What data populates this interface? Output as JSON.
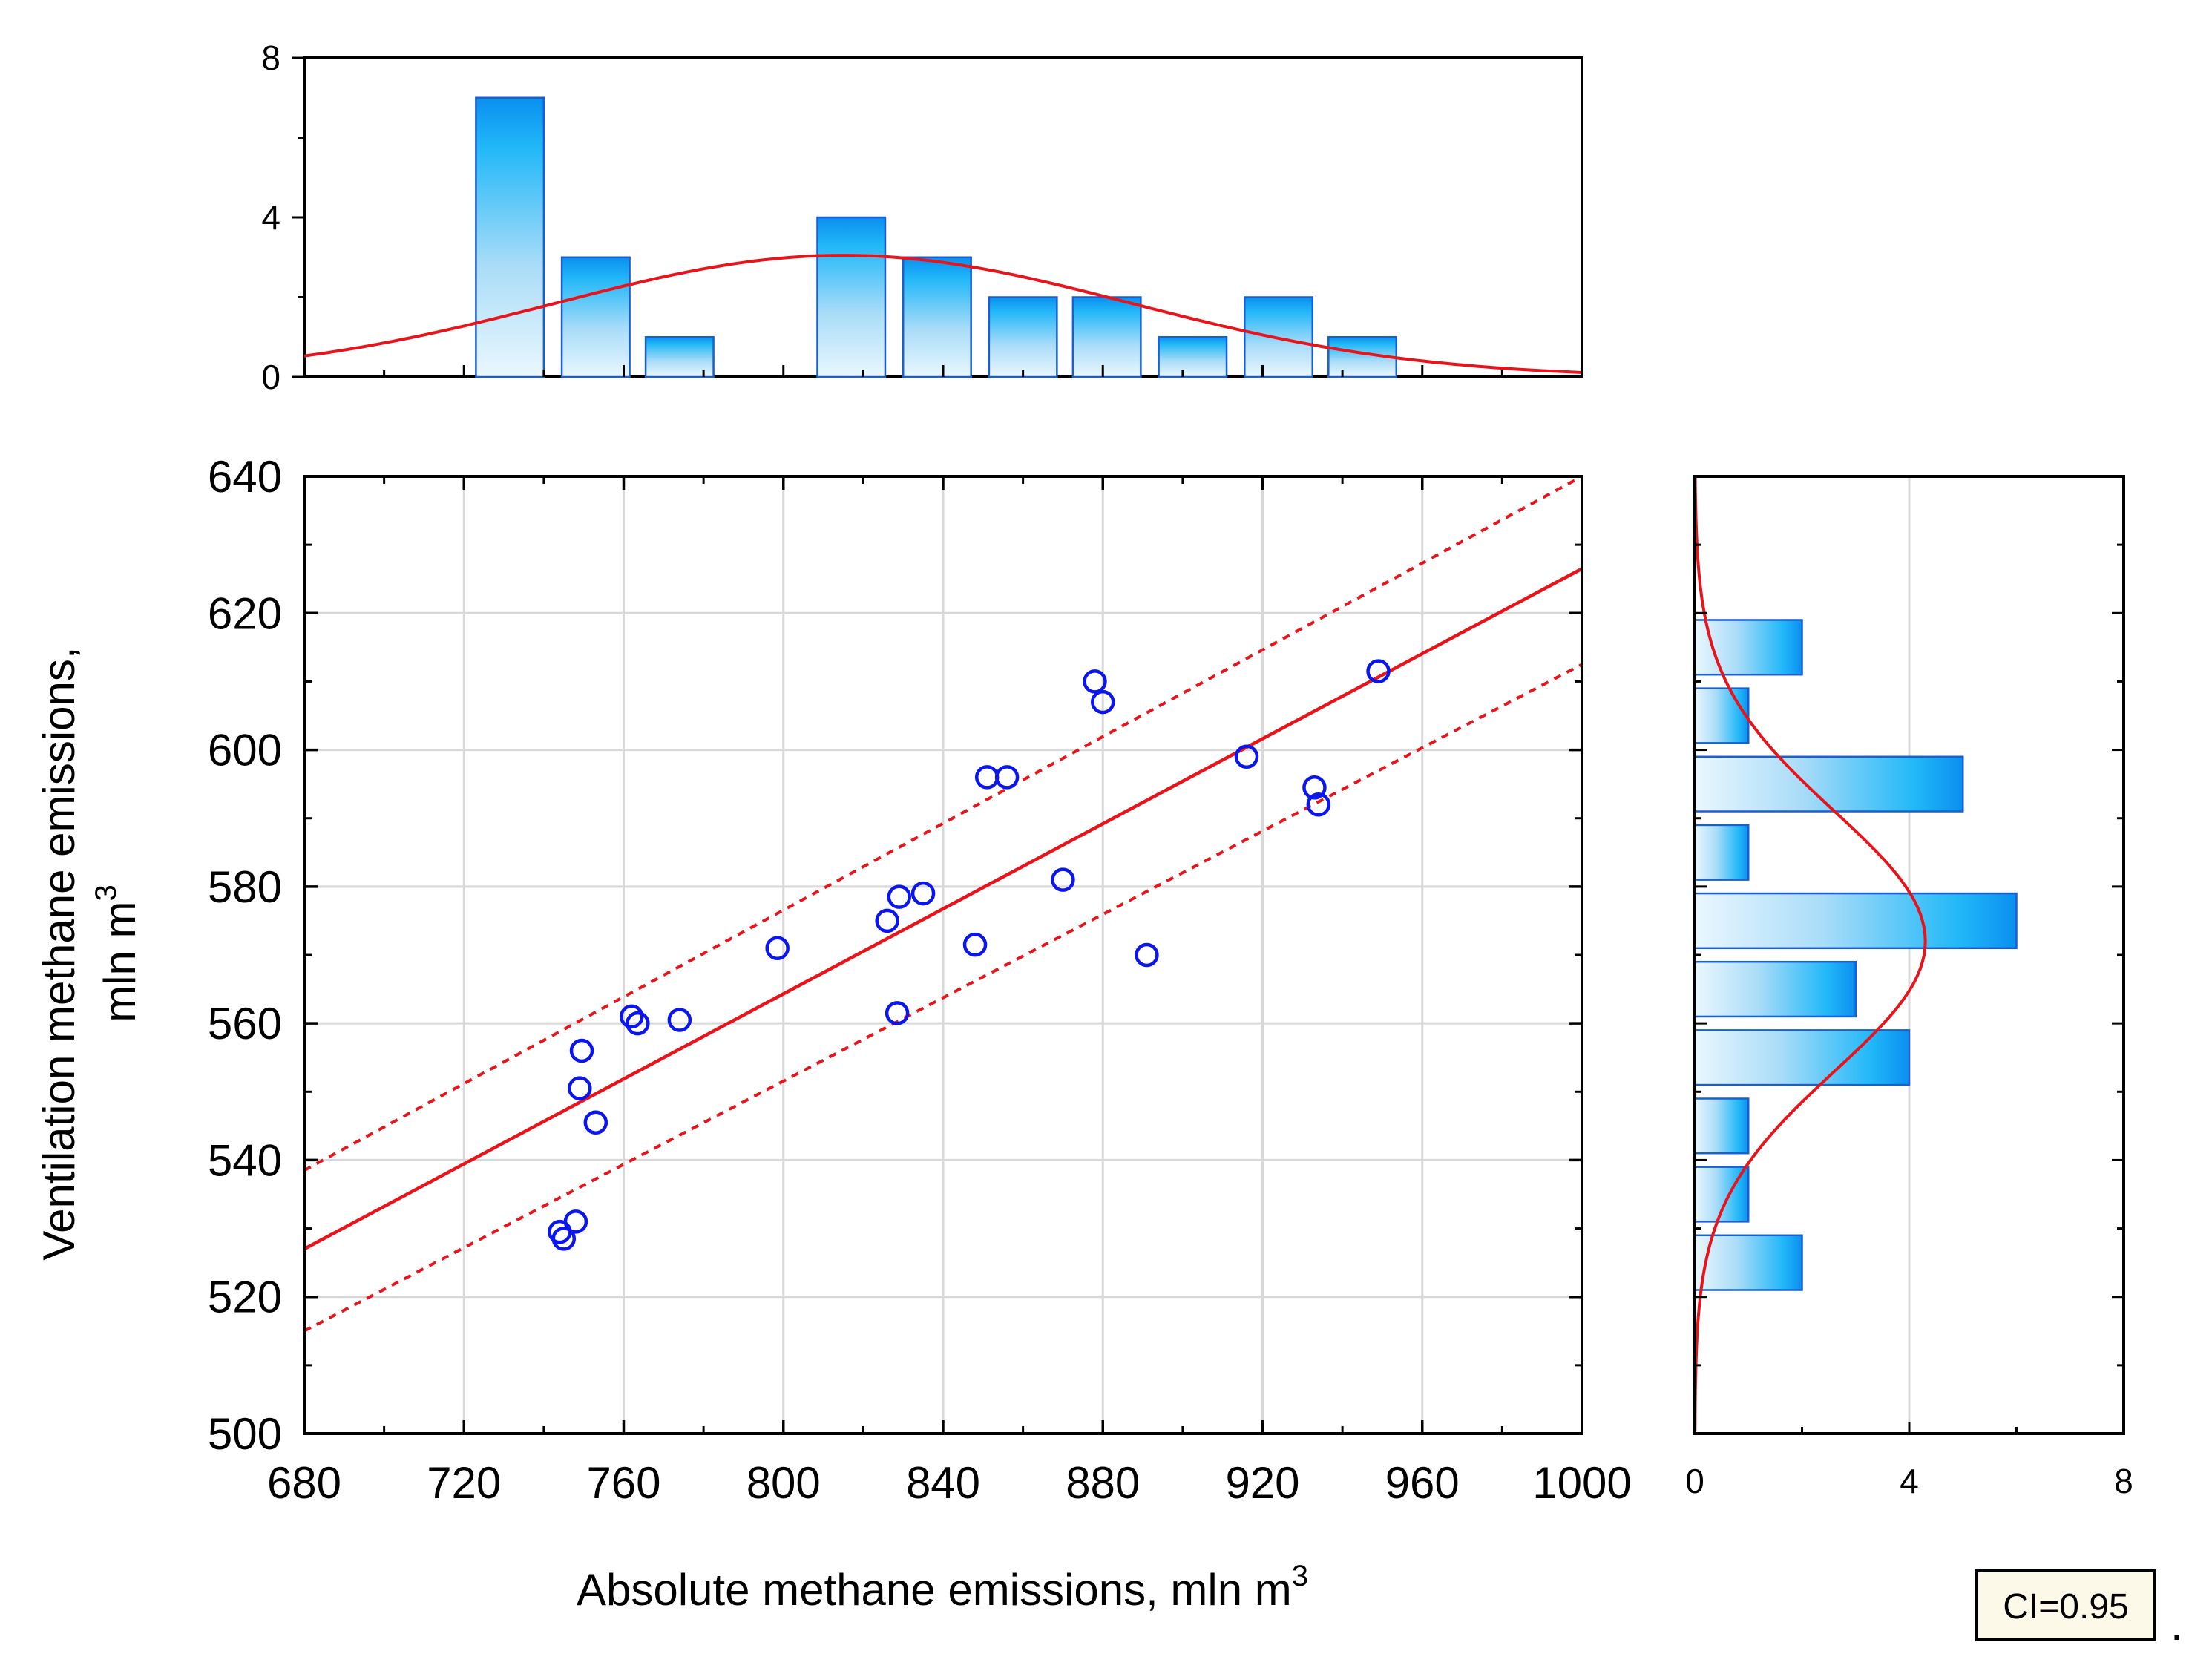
{
  "chart_data": [
    {
      "id": "scatter",
      "type": "scatter",
      "xlabel": "Absolute methane emissions, mln m",
      "xlabel_sup": "3",
      "ylabel_line1": "Ventilation methane emissions,",
      "ylabel_line2": "mln m",
      "ylabel_sup": "3",
      "xlim": [
        680,
        1000
      ],
      "ylim": [
        500,
        640
      ],
      "xticks": [
        680,
        720,
        760,
        800,
        840,
        880,
        920,
        960,
        1000
      ],
      "yticks": [
        500,
        520,
        540,
        560,
        580,
        600,
        620,
        640
      ],
      "grid": true,
      "points": [
        {
          "x": 744,
          "y": 529.5
        },
        {
          "x": 745,
          "y": 528.5
        },
        {
          "x": 748,
          "y": 531
        },
        {
          "x": 749,
          "y": 550.5
        },
        {
          "x": 749.5,
          "y": 556
        },
        {
          "x": 753,
          "y": 545.5
        },
        {
          "x": 762,
          "y": 561
        },
        {
          "x": 763.5,
          "y": 560
        },
        {
          "x": 774,
          "y": 560.5
        },
        {
          "x": 798.5,
          "y": 571
        },
        {
          "x": 826,
          "y": 575
        },
        {
          "x": 828.5,
          "y": 561.5
        },
        {
          "x": 829,
          "y": 578.5
        },
        {
          "x": 835,
          "y": 579
        },
        {
          "x": 848,
          "y": 571.5
        },
        {
          "x": 851,
          "y": 596
        },
        {
          "x": 856,
          "y": 596
        },
        {
          "x": 870,
          "y": 581
        },
        {
          "x": 878,
          "y": 610
        },
        {
          "x": 880,
          "y": 607
        },
        {
          "x": 891,
          "y": 570
        },
        {
          "x": 916,
          "y": 599
        },
        {
          "x": 933,
          "y": 594.5
        },
        {
          "x": 934,
          "y": 592
        },
        {
          "x": 949,
          "y": 611.5
        }
      ],
      "fit_line": {
        "x": [
          680,
          1000
        ],
        "y": [
          527,
          626.5
        ]
      },
      "ci_upper": {
        "x": [
          680,
          1000
        ],
        "y": [
          538.5,
          640
        ]
      },
      "ci_lower": {
        "x": [
          680,
          1000
        ],
        "y": [
          515,
          612.5
        ]
      },
      "annotation": "CI=0.95"
    },
    {
      "id": "top-histogram",
      "type": "bar",
      "xlim": [
        680,
        1000
      ],
      "ylim": [
        0,
        8
      ],
      "yticks": [
        0,
        4,
        8
      ],
      "bin_centers": [
        731.5,
        753,
        774,
        817,
        838.5,
        860,
        881,
        902.5,
        924,
        945
      ],
      "bin_width": 17,
      "values": [
        7,
        3,
        1,
        4,
        3,
        2,
        2,
        1,
        2,
        1
      ],
      "normal_curve": {
        "mean": 815,
        "sd": 72,
        "peak": 3.05
      }
    },
    {
      "id": "right-histogram",
      "type": "bar",
      "orientation": "horizontal",
      "ylim": [
        500,
        640
      ],
      "xlim": [
        0,
        8
      ],
      "xticks": [
        0,
        4,
        8
      ],
      "bin_centers": [
        615,
        605,
        595,
        585,
        575,
        565,
        555,
        545,
        535,
        525
      ],
      "bin_height": 8,
      "values": [
        2,
        1,
        5,
        1,
        6,
        3,
        4,
        1,
        1,
        2
      ],
      "normal_curve": {
        "mean": 572,
        "sd": 19,
        "peak": 4.3
      }
    }
  ],
  "trailing_mark": "."
}
